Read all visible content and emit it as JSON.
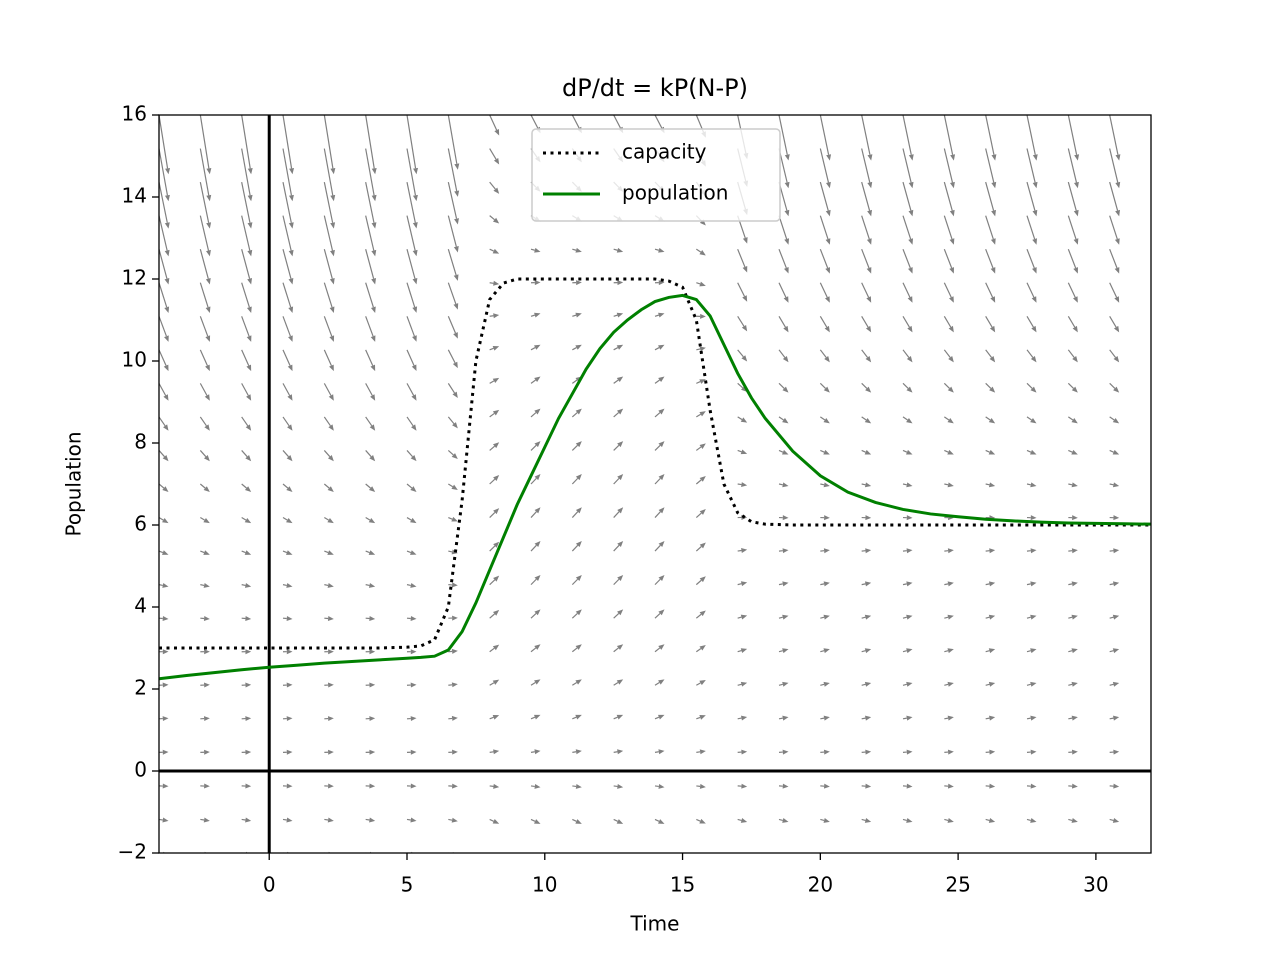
{
  "chart_data": {
    "type": "line",
    "title": "dP/dt = kP(N-P)",
    "x_label": "Time",
    "y_label": "Population",
    "x": [
      -4,
      -3,
      -2,
      -1,
      0,
      1,
      2,
      3,
      4,
      5,
      5.5,
      6,
      6.5,
      7,
      7.5,
      8,
      8.5,
      9,
      9.5,
      10,
      10.5,
      11,
      11.5,
      12,
      12.5,
      13,
      13.5,
      14,
      14.5,
      15,
      15.5,
      16,
      16.5,
      17,
      17.5,
      18,
      19,
      20,
      21,
      22,
      23,
      24,
      25,
      26,
      27,
      28,
      29,
      30,
      31,
      32
    ],
    "series": [
      {
        "name": "capacity",
        "color": "#000000",
        "style": "dotted",
        "values": [
          3,
          3,
          3,
          3,
          3,
          3,
          3,
          3,
          3,
          3.02,
          3.05,
          3.2,
          4.0,
          6.6,
          10.0,
          11.5,
          11.9,
          12,
          12,
          12,
          12,
          12,
          12,
          12,
          12,
          12,
          12,
          12,
          11.95,
          11.8,
          11.0,
          8.8,
          7.0,
          6.3,
          6.08,
          6.02,
          6,
          6,
          6,
          6,
          6,
          6,
          6,
          6,
          6,
          6,
          6,
          6,
          6,
          6
        ]
      },
      {
        "name": "population",
        "color": "#008000",
        "style": "solid",
        "values": [
          2.25,
          2.33,
          2.4,
          2.47,
          2.53,
          2.58,
          2.63,
          2.67,
          2.71,
          2.75,
          2.77,
          2.8,
          2.95,
          3.4,
          4.1,
          4.9,
          5.7,
          6.5,
          7.2,
          7.9,
          8.6,
          9.2,
          9.8,
          10.3,
          10.7,
          11.0,
          11.25,
          11.45,
          11.55,
          11.6,
          11.5,
          11.1,
          10.4,
          9.7,
          9.1,
          8.6,
          7.8,
          7.2,
          6.8,
          6.55,
          6.38,
          6.27,
          6.2,
          6.14,
          6.1,
          6.07,
          6.05,
          6.04,
          6.03,
          6.02
        ]
      }
    ],
    "xlim": [
      -4,
      32
    ],
    "ylim": [
      -2,
      16
    ],
    "xticks": [
      0,
      5,
      10,
      15,
      20,
      25,
      30
    ],
    "yticks": [
      {
        "value": -2,
        "label": "−2"
      },
      0,
      2,
      4,
      6,
      8,
      10,
      12,
      14,
      16
    ],
    "legend": "upper center",
    "field_color": "#808080"
  }
}
